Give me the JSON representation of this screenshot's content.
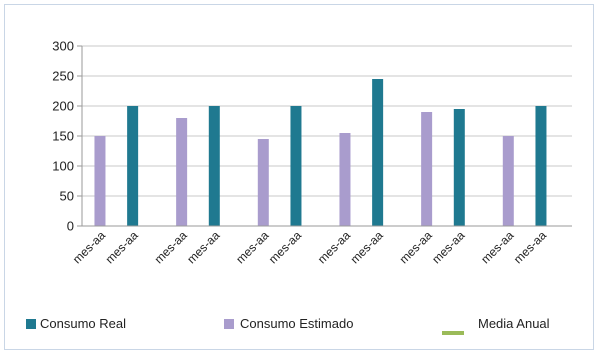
{
  "chart_data": {
    "type": "bar",
    "title": "",
    "xlabel": "",
    "ylabel": "",
    "ylim": [
      0,
      300
    ],
    "yticks": [
      0,
      50,
      100,
      150,
      200,
      250,
      300
    ],
    "grid": true,
    "categories": [
      "mes-aa",
      "mes-aa",
      "mes-aa",
      "mes-aa",
      "mes-aa",
      "mes-aa"
    ],
    "series": [
      {
        "name": "Consumo Estimado",
        "color": "#a99ccd",
        "values": [
          150,
          180,
          145,
          155,
          190,
          150
        ]
      },
      {
        "name": "Consumo Real",
        "color": "#1f7990",
        "values": [
          200,
          200,
          200,
          245,
          195,
          200
        ]
      }
    ],
    "x_tick_labels": [
      "mes-aa",
      "mes-aa",
      "mes-aa",
      "mes-aa",
      "mes-aa",
      "mes-aa",
      "mes-aa",
      "mes-aa",
      "mes-aa",
      "mes-aa",
      "mes-aa",
      "mes-aa"
    ],
    "legend": {
      "placement": "bottom",
      "items": [
        {
          "label": "Consumo Real",
          "color": "#1f7990",
          "marker": "square"
        },
        {
          "label": "Consumo Estimado",
          "color": "#a99ccd",
          "marker": "square"
        },
        {
          "label": "Media Anual",
          "color": "#9bbb59",
          "marker": "line"
        }
      ]
    }
  }
}
